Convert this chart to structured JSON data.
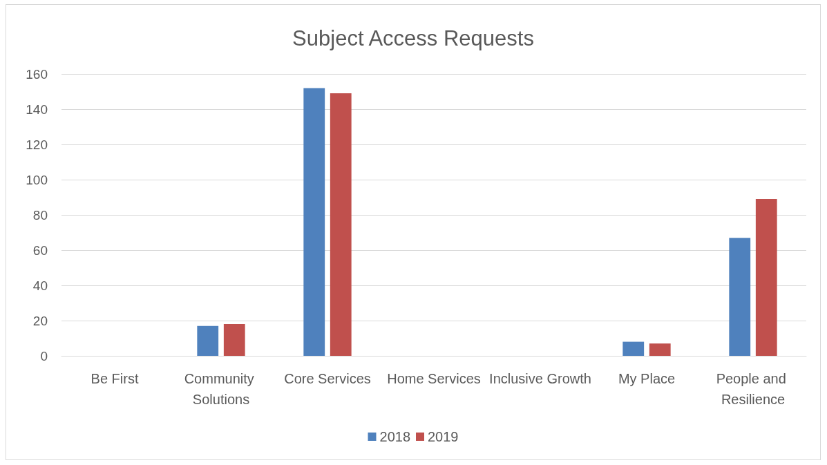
{
  "chart_data": {
    "type": "bar",
    "title": "Subject Access Requests",
    "categories": [
      "Be First",
      "Community Solutions",
      "Core Services",
      "Home Services",
      "Inclusive Growth",
      "My Place",
      "People and Resilience"
    ],
    "series": [
      {
        "name": "2018",
        "color": "#4f81bd",
        "values": [
          0,
          17,
          152,
          0,
          0,
          8,
          67
        ]
      },
      {
        "name": "2019",
        "color": "#c0504d",
        "values": [
          0,
          18,
          149,
          0,
          0,
          7,
          89
        ]
      }
    ],
    "ylim": [
      0,
      160
    ],
    "yticks": [
      0,
      20,
      40,
      60,
      80,
      100,
      120,
      140,
      160
    ],
    "grid": "y",
    "legend": "bottom"
  }
}
